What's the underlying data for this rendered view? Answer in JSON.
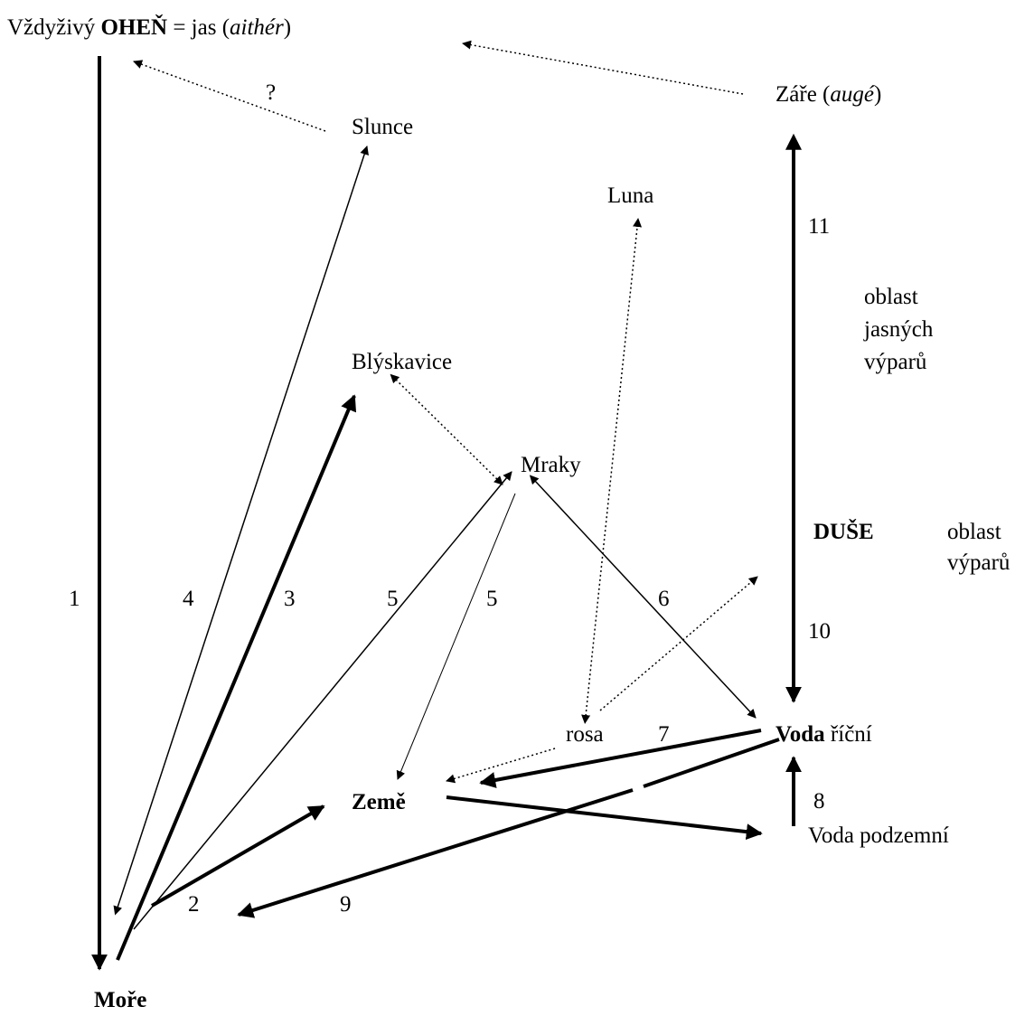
{
  "title": {
    "prefix": "Vždyživý ",
    "fire": "OHEŇ",
    "middle": " = jas (",
    "aither": "aithér",
    "suffix": ")"
  },
  "nodes": {
    "more": "Moře",
    "slunce": "Slunce",
    "zare_prefix": "Záře (",
    "zare_auge": "augé",
    "zare_suffix": ")",
    "luna": "Luna",
    "blyskavice": "Blýskavice",
    "mraky": "Mraky",
    "duse": "DUŠE",
    "rosa": "rosa",
    "voda_bold": "Voda",
    "voda_rest": " říční",
    "zeme": "Země",
    "voda_podzemni": "Voda podzemní"
  },
  "regions": {
    "jasne": [
      "oblast",
      "jasných",
      "výparů"
    ],
    "vypary": [
      "oblast",
      "výparů"
    ]
  },
  "edge_labels": {
    "question": "?",
    "e1": "1",
    "e2": "2",
    "e3": "3",
    "e4": "4",
    "e5a": "5",
    "e5b": "5",
    "e6": "6",
    "e7": "7",
    "e8": "8",
    "e9": "9",
    "e10": "10",
    "e11": "11"
  }
}
